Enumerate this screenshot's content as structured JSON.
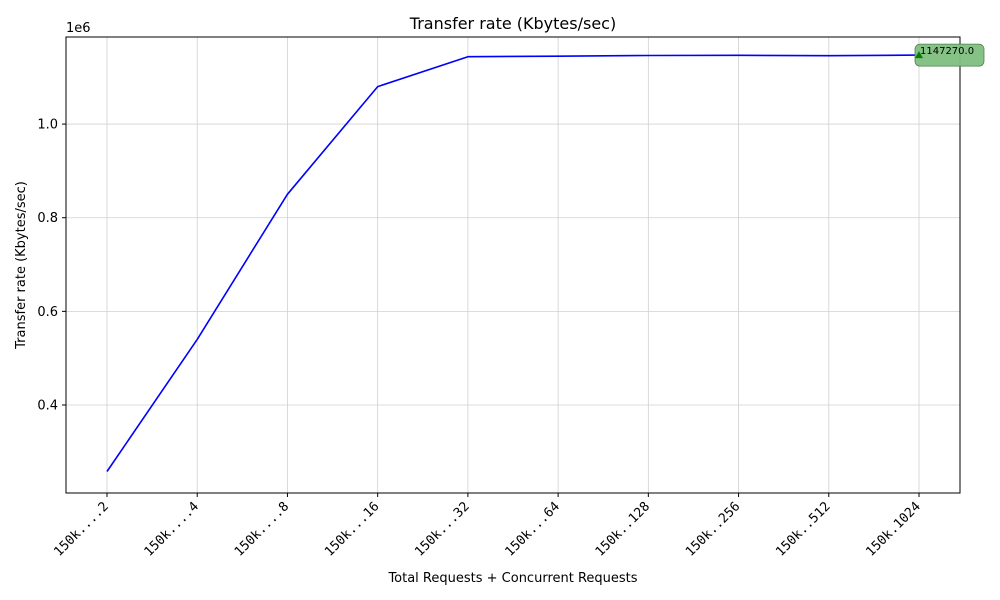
{
  "chart_data": {
    "type": "line",
    "title": "Transfer rate (Kbytes/sec)",
    "xlabel": "Total Requests + Concurrent Requests",
    "ylabel": "Transfer rate (Kbytes/sec)",
    "y_offset_label": "1e6",
    "categories": [
      "150k....2",
      "150k....4",
      "150k....8",
      "150k...16",
      "150k...32",
      "150k...64",
      "150k..128",
      "150k..256",
      "150k..512",
      "150k.1024"
    ],
    "series": [
      {
        "values": [
          258000,
          540000,
          850000,
          1080000,
          1144000,
          1145000,
          1146500,
          1147000,
          1146000,
          1147270.0
        ],
        "color": "#0000ff"
      }
    ],
    "ylim": [
      212000,
      1186000
    ],
    "yticks": [
      400000,
      600000,
      800000,
      1000000
    ],
    "ytick_labels": [
      "0.4",
      "0.6",
      "0.8",
      "1.0"
    ],
    "grid": true,
    "annotation": {
      "category_index": 9,
      "value": 1147270.0,
      "label": "1147270.0",
      "marker": "triangle-up",
      "marker_color": "#008000",
      "box_color": "#7fbf7f"
    }
  }
}
